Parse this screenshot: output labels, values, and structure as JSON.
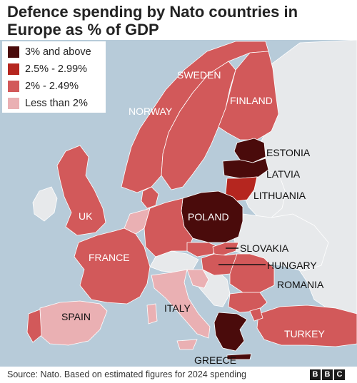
{
  "title": "Defence spending by Nato countries in Europe as % of GDP",
  "legend": [
    {
      "label": "3% and above",
      "color": "#4a0b0b"
    },
    {
      "label": "2.5% - 2.99%",
      "color": "#b5261f"
    },
    {
      "label": "2% - 2.49%",
      "color": "#d2595a"
    },
    {
      "label": "Less than 2%",
      "color": "#eab0b3"
    }
  ],
  "colors": {
    "sea": "#b7cbd9",
    "non_nato": "#e7e9eb",
    "label_dark": "#111111",
    "label_light": "#ffffff"
  },
  "countries": {
    "sweden": {
      "label": "SWEDEN",
      "tier": "2% - 2.49%"
    },
    "norway": {
      "label": "NORWAY",
      "tier": "2% - 2.49%"
    },
    "finland": {
      "label": "FINLAND",
      "tier": "2% - 2.49%"
    },
    "estonia": {
      "label": "ESTONIA",
      "tier": "3% and above"
    },
    "latvia": {
      "label": "LATVIA",
      "tier": "3% and above"
    },
    "lithuania": {
      "label": "LITHUANIA",
      "tier": "2.5% - 2.99%"
    },
    "poland": {
      "label": "POLAND",
      "tier": "3% and above"
    },
    "uk": {
      "label": "UK",
      "tier": "2% - 2.49%"
    },
    "france": {
      "label": "FRANCE",
      "tier": "2% - 2.49%"
    },
    "slovakia": {
      "label": "SLOVAKIA",
      "tier": "2% - 2.49%"
    },
    "hungary": {
      "label": "HUNGARY",
      "tier": "2% - 2.49%"
    },
    "romania": {
      "label": "ROMANIA",
      "tier": "2% - 2.49%"
    },
    "spain": {
      "label": "SPAIN",
      "tier": "Less than 2%"
    },
    "italy": {
      "label": "ITALY",
      "tier": "Less than 2%"
    },
    "turkey": {
      "label": "TURKEY",
      "tier": "2% - 2.49%"
    },
    "greece": {
      "label": "GREECE",
      "tier": "3% and above"
    }
  },
  "source": "Source: Nato. Based on estimated figures for 2024 spending",
  "logo_letters": [
    "B",
    "B",
    "C"
  ]
}
